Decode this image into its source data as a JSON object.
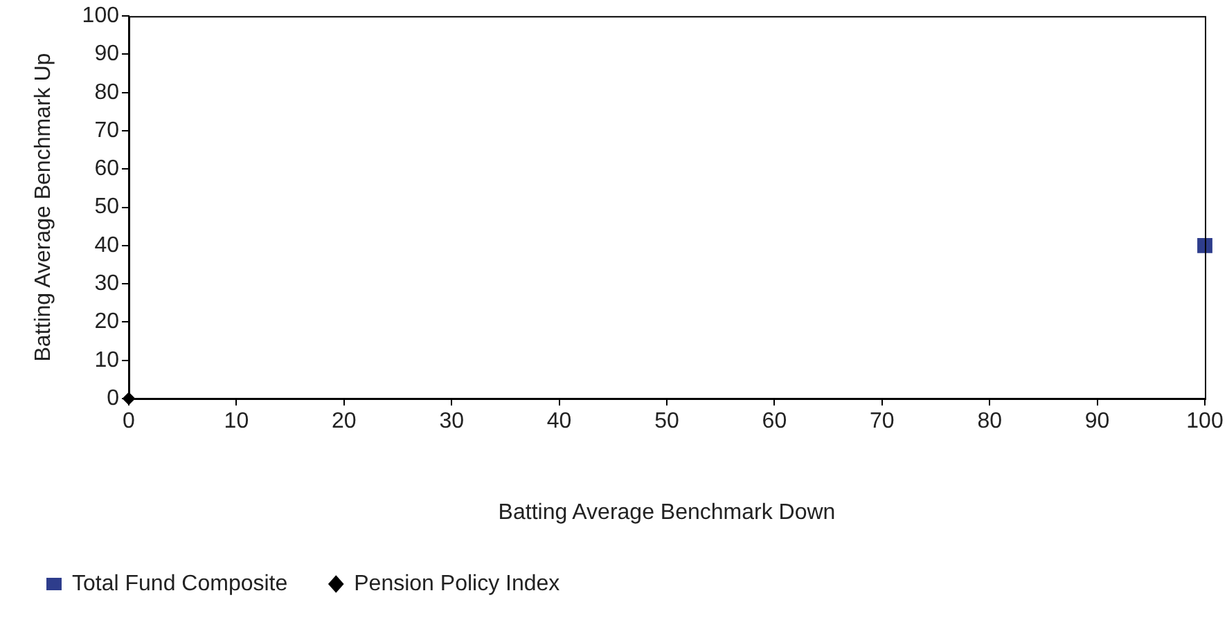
{
  "chart_data": {
    "type": "scatter",
    "xlabel": "Batting Average Benchmark Down",
    "ylabel": "Batting Average Benchmark Up",
    "xlim": [
      0,
      100
    ],
    "xticks": [
      0,
      10,
      20,
      30,
      40,
      50,
      60,
      70,
      80,
      90,
      100
    ],
    "ylim": [
      0,
      100
    ],
    "yticks": [
      0,
      10,
      20,
      30,
      40,
      50,
      60,
      70,
      80,
      90,
      100
    ],
    "grid": false,
    "legend": "bottom left",
    "series": [
      {
        "name": "Total Fund Composite",
        "color": "#2e3d8c",
        "marker": "square",
        "x": [
          100
        ],
        "values": [
          40
        ]
      },
      {
        "name": "Pension Policy Index",
        "color": "#000000",
        "marker": "diamond",
        "x": [
          0
        ],
        "values": [
          0
        ]
      }
    ]
  }
}
